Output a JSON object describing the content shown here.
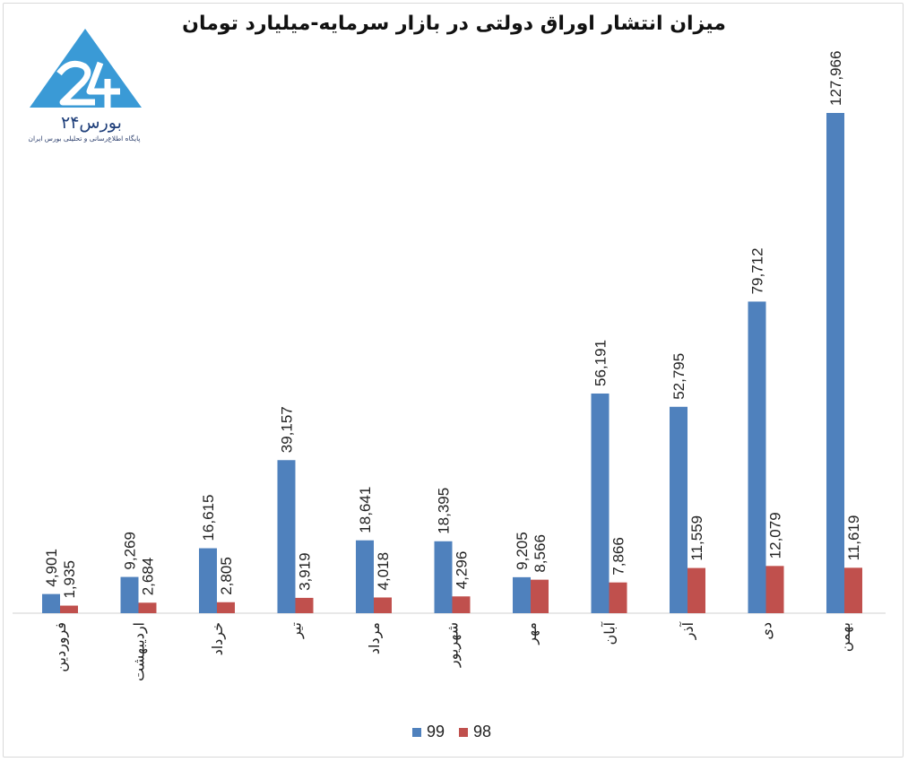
{
  "chart_data": {
    "type": "bar",
    "title": "میزان انتشار اوراق دولتی در بازار سرمایه-میلیارد تومان",
    "categories": [
      "فروردین",
      "اردیبهشت",
      "خرداد",
      "تیر",
      "مرداد",
      "شهریور",
      "مهر",
      "آبان",
      "آذر",
      "دی",
      "بهمن"
    ],
    "series": [
      {
        "name": "99",
        "color": "#4f81bd",
        "values": [
          4901,
          9269,
          16615,
          39157,
          18641,
          18395,
          9205,
          56191,
          52795,
          79712,
          127966
        ],
        "labels": [
          "4,901",
          "9,269",
          "16,615",
          "39,157",
          "18,641",
          "18,395",
          "9,205",
          "56,191",
          "52,795",
          "79,712",
          "127,966"
        ]
      },
      {
        "name": "98",
        "color": "#c0504d",
        "values": [
          1935,
          2684,
          2805,
          3919,
          4018,
          4296,
          8566,
          7866,
          11559,
          12079,
          11619
        ],
        "labels": [
          "1,935",
          "2,684",
          "2,805",
          "3,919",
          "4,018",
          "4,296",
          "8,566",
          "7,866",
          "11,559",
          "12,079",
          "11,619"
        ]
      }
    ],
    "ylim": [
      0,
      130000
    ],
    "legend_position": "bottom",
    "grid": false
  },
  "logo": {
    "name": "بورس۲۴",
    "tagline": "پایگاه اطلاع‌رسانی و تحلیلی بورس ایران",
    "color": "#2f8fc9"
  }
}
